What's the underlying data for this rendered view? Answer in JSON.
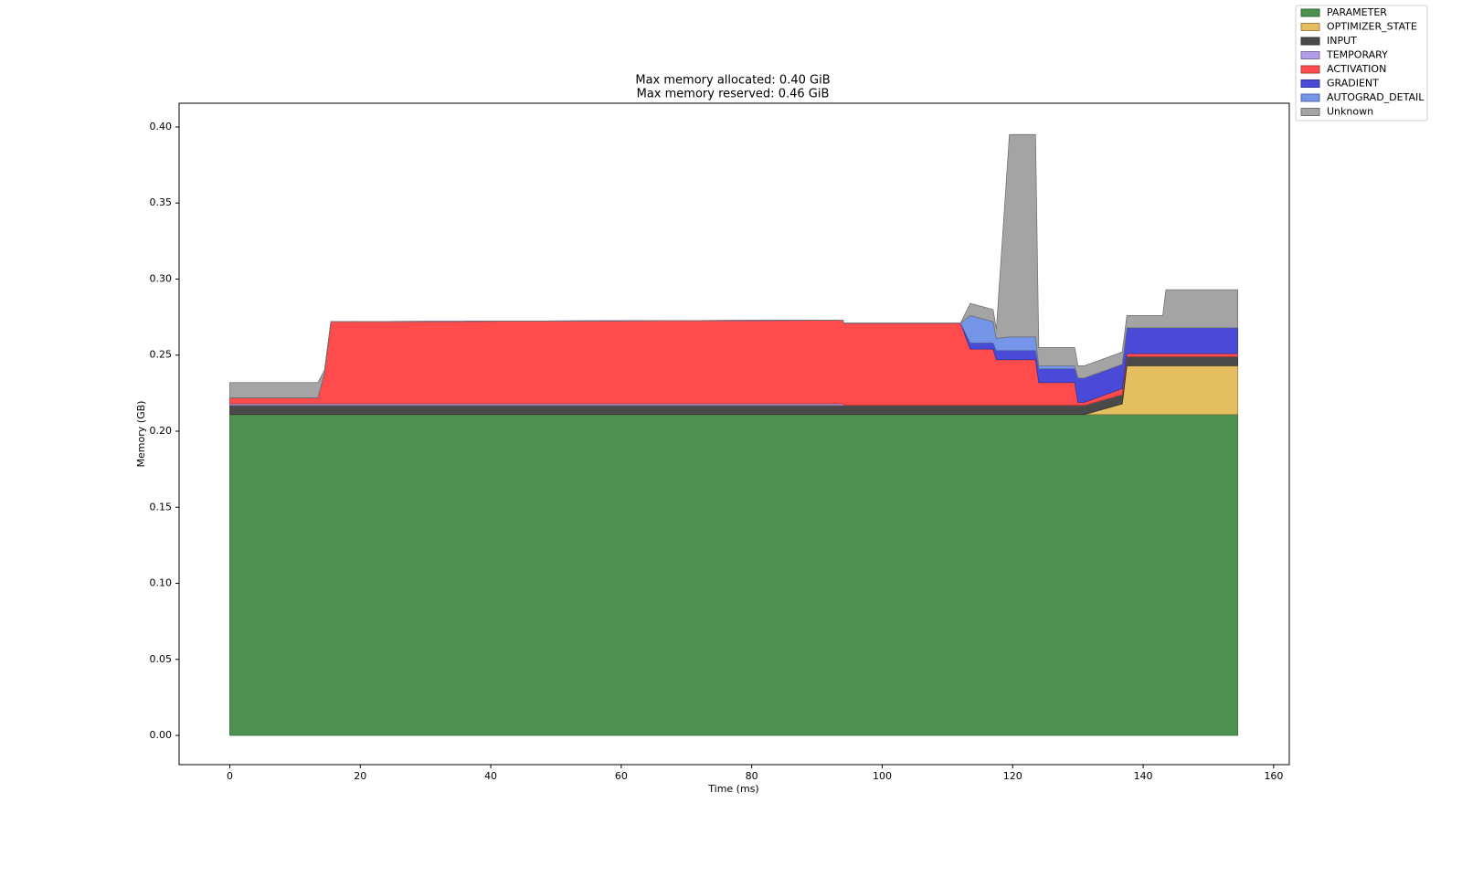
{
  "chart_data": {
    "type": "stacked_area",
    "title": "Max memory allocated: 0.40 GiB",
    "subtitle": "Max memory reserved: 0.46 GiB",
    "x_label": "Time (ms)",
    "y_label": "Memory (GB)",
    "x": [
      0,
      13.5,
      14.5,
      15.5,
      94,
      94.1,
      112,
      113.5,
      117,
      117.5,
      119.5,
      123.5,
      124,
      129.5,
      130,
      131,
      136.8,
      137.5,
      143,
      143.5,
      154.5
    ],
    "series": [
      {
        "name": "PARAMETER",
        "color": "#4c9150",
        "values": [
          0.211,
          0.211,
          0.211,
          0.211,
          0.211,
          0.211,
          0.211,
          0.211,
          0.211,
          0.211,
          0.211,
          0.211,
          0.211,
          0.211,
          0.211,
          0.211,
          0.211,
          0.211,
          0.211,
          0.211,
          0.211
        ]
      },
      {
        "name": "OPTIMIZER_STATE",
        "color": "#e5be60",
        "values": [
          0,
          0,
          0,
          0,
          0,
          0,
          0,
          0,
          0,
          0,
          0,
          0,
          0,
          0,
          0,
          0,
          0.007,
          0.032,
          0.032,
          0.032,
          0.032
        ]
      },
      {
        "name": "INPUT",
        "color": "#4a4a4a",
        "values": [
          0.006,
          0.006,
          0.006,
          0.006,
          0.006,
          0.006,
          0.006,
          0.006,
          0.006,
          0.006,
          0.006,
          0.006,
          0.006,
          0.006,
          0.006,
          0.006,
          0.006,
          0.006,
          0.006,
          0.006,
          0.006
        ]
      },
      {
        "name": "TEMPORARY",
        "color": "#b39de6",
        "values": [
          0.001,
          0.001,
          0.001,
          0.001,
          0.001,
          0,
          0,
          0,
          0,
          0,
          0,
          0,
          0,
          0,
          0,
          0,
          0,
          0,
          0,
          0,
          0
        ]
      },
      {
        "name": "ACTIVATION",
        "color": "#ff4b4b",
        "values": [
          0.004,
          0.004,
          0.02,
          0.054,
          0.055,
          0.054,
          0.054,
          0.037,
          0.037,
          0.03,
          0.03,
          0.03,
          0.015,
          0.015,
          0.002,
          0.002,
          0.004,
          0.002,
          0.002,
          0.002,
          0.002
        ]
      },
      {
        "name": "GRADIENT",
        "color": "#4a4ad9",
        "values": [
          0,
          0,
          0,
          0,
          0,
          0,
          0,
          0.004,
          0.004,
          0.006,
          0.006,
          0.006,
          0.009,
          0.009,
          0.016,
          0.016,
          0.016,
          0.017,
          0.017,
          0.017,
          0.017
        ]
      },
      {
        "name": "AUTOGRAD_DETAIL",
        "color": "#7595e9",
        "values": [
          0,
          0,
          0,
          0,
          0,
          0,
          0,
          0.018,
          0.014,
          0.008,
          0.009,
          0.009,
          0.002,
          0.002,
          0,
          0,
          0,
          0,
          0,
          0,
          0
        ]
      },
      {
        "name": "Unknown",
        "color": "#a4a4a4",
        "values": [
          0.01,
          0.01,
          0.002,
          0,
          0,
          0,
          0,
          0.008,
          0.008,
          0.006,
          0.133,
          0.133,
          0.012,
          0.012,
          0.008,
          0.008,
          0.008,
          0.008,
          0.008,
          0.025,
          0.025
        ]
      }
    ],
    "xlim": [
      -7.77,
      162.4
    ],
    "ylim": [
      -0.0192,
      0.4156
    ],
    "xticks": [
      0,
      20,
      40,
      60,
      80,
      100,
      120,
      140,
      160
    ],
    "yticks": [
      {
        "value": 0,
        "label": "0.00"
      },
      {
        "value": 0.05,
        "label": "0.05"
      },
      {
        "value": 0.1,
        "label": "0.10"
      },
      {
        "value": 0.15,
        "label": "0.15"
      },
      {
        "value": 0.2,
        "label": "0.20"
      },
      {
        "value": 0.25,
        "label": "0.25"
      },
      {
        "value": 0.3,
        "label": "0.30"
      },
      {
        "value": 0.35,
        "label": "0.35"
      },
      {
        "value": 0.4,
        "label": "0.40"
      }
    ],
    "legend": "upper-right-outside",
    "grid": false
  }
}
